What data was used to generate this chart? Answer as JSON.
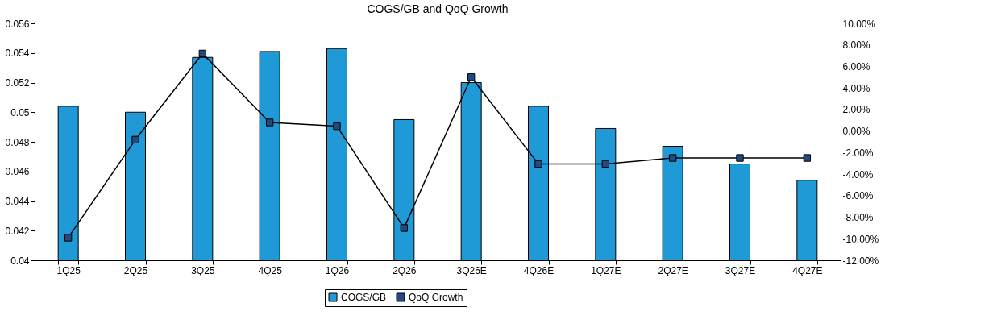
{
  "chart_data": {
    "type": "bar",
    "title": "COGS/GB and QoQ Growth",
    "categories": [
      "1Q25",
      "2Q25",
      "3Q25",
      "4Q25",
      "1Q26",
      "2Q26",
      "3Q26E",
      "4Q26E",
      "1Q27E",
      "2Q27E",
      "3Q27E",
      "4Q27E"
    ],
    "series": [
      {
        "name": "COGS/GB",
        "color": "#1f9ad6",
        "values": [
          0.0504,
          0.05,
          0.0537,
          0.0541,
          0.0543,
          0.0495,
          0.052,
          0.0504,
          0.0489,
          0.0477,
          0.0465,
          0.0454
        ]
      },
      {
        "name": "QoQ Growth",
        "type": "line",
        "axis": "y2",
        "color": "#234a80",
        "marker": "square",
        "values": [
          -9.9,
          -0.8,
          7.2,
          0.8,
          0.45,
          -9.0,
          5.0,
          -3.05,
          -3.05,
          -2.5,
          -2.5,
          -2.5
        ]
      }
    ],
    "ylim": [
      0.04,
      0.056
    ],
    "yticks": [
      0.04,
      0.042,
      0.044,
      0.046,
      0.048,
      0.05,
      0.052,
      0.054,
      0.056
    ],
    "y2lim": [
      -12,
      10
    ],
    "y2ticks": [
      {
        "value": -12,
        "label": "-12.00%"
      },
      {
        "value": -10,
        "label": "-10.00%"
      },
      {
        "value": -8,
        "label": "-8.00%"
      },
      {
        "value": -6,
        "label": "-6.00%"
      },
      {
        "value": -4,
        "label": "-4.00%"
      },
      {
        "value": -2,
        "label": "-2.00%"
      },
      {
        "value": 0,
        "label": "0.00%"
      },
      {
        "value": 2,
        "label": "2.00%"
      },
      {
        "value": 4,
        "label": "4.00%"
      },
      {
        "value": 6,
        "label": "6.00%"
      },
      {
        "value": 8,
        "label": "8.00%"
      },
      {
        "value": 10,
        "label": "10.00%"
      }
    ],
    "grid": false,
    "legend": "bottom"
  }
}
